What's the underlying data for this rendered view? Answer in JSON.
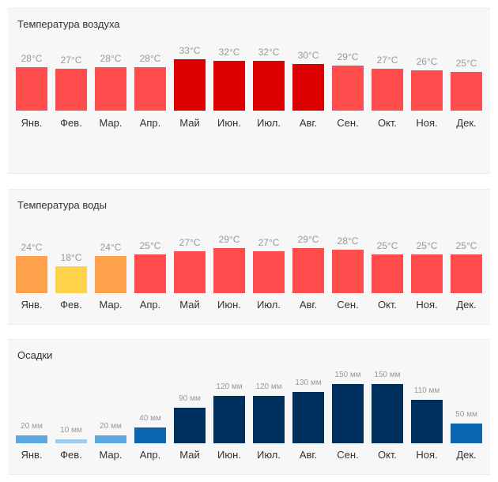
{
  "months": [
    "Янв.",
    "Фев.",
    "Мар.",
    "Апр.",
    "Май",
    "Июн.",
    "Июл.",
    "Авг.",
    "Сен.",
    "Окт.",
    "Ноя.",
    "Дек."
  ],
  "chart_data": [
    {
      "type": "bar",
      "title": "Температура воздуха",
      "unit": "°C",
      "categories": [
        "Янв.",
        "Фев.",
        "Мар.",
        "Апр.",
        "Май",
        "Июн.",
        "Июл.",
        "Авг.",
        "Сен.",
        "Окт.",
        "Ноя.",
        "Дек."
      ],
      "values": [
        28,
        27,
        28,
        28,
        33,
        32,
        32,
        30,
        29,
        27,
        26,
        25
      ],
      "labels": [
        "28°C",
        "27°C",
        "28°C",
        "28°C",
        "33°C",
        "32°C",
        "32°C",
        "30°C",
        "29°C",
        "27°C",
        "26°C",
        "25°C"
      ],
      "colors": [
        "#ff4c4c",
        "#ff4c4c",
        "#ff4c4c",
        "#ff4c4c",
        "#dd0000",
        "#dd0000",
        "#dd0000",
        "#dd0000",
        "#ff4c4c",
        "#ff4c4c",
        "#ff4c4c",
        "#ff4c4c"
      ],
      "xlabel": "",
      "ylabel": ""
    },
    {
      "type": "bar",
      "title": "Температура воды",
      "unit": "°C",
      "categories": [
        "Янв.",
        "Фев.",
        "Мар.",
        "Апр.",
        "Май",
        "Июн.",
        "Июл.",
        "Авг.",
        "Сен.",
        "Окт.",
        "Ноя.",
        "Дек."
      ],
      "values": [
        24,
        18,
        24,
        25,
        27,
        29,
        27,
        29,
        28,
        25,
        25,
        25
      ],
      "labels": [
        "24°C",
        "18°C",
        "24°C",
        "25°C",
        "27°C",
        "29°C",
        "27°C",
        "29°C",
        "28°C",
        "25°C",
        "25°C",
        "25°C"
      ],
      "colors": [
        "#ffa04c",
        "#ffd24c",
        "#ffa04c",
        "#ff4c4c",
        "#ff4c4c",
        "#ff4c4c",
        "#ff4c4c",
        "#ff4c4c",
        "#ff4c4c",
        "#ff4c4c",
        "#ff4c4c",
        "#ff4c4c"
      ],
      "xlabel": "",
      "ylabel": ""
    },
    {
      "type": "bar",
      "title": "Осадки",
      "unit": "мм",
      "categories": [
        "Янв.",
        "Фев.",
        "Мар.",
        "Апр.",
        "Май",
        "Июн.",
        "Июл.",
        "Авг.",
        "Сен.",
        "Окт.",
        "Ноя.",
        "Дек."
      ],
      "values": [
        20,
        10,
        20,
        40,
        90,
        120,
        120,
        130,
        150,
        150,
        110,
        50
      ],
      "labels": [
        "20 мм",
        "10 мм",
        "20 мм",
        "40 мм",
        "90 мм",
        "120 мм",
        "120 мм",
        "130 мм",
        "150 мм",
        "150 мм",
        "110 мм",
        "50 мм"
      ],
      "colors": [
        "#5aa8e0",
        "#9fcdef",
        "#5aa8e0",
        "#0a66b0",
        "#00315e",
        "#00315e",
        "#00315e",
        "#00315e",
        "#00315e",
        "#00315e",
        "#00315e",
        "#0a66b0"
      ],
      "xlabel": "",
      "ylabel": ""
    }
  ]
}
